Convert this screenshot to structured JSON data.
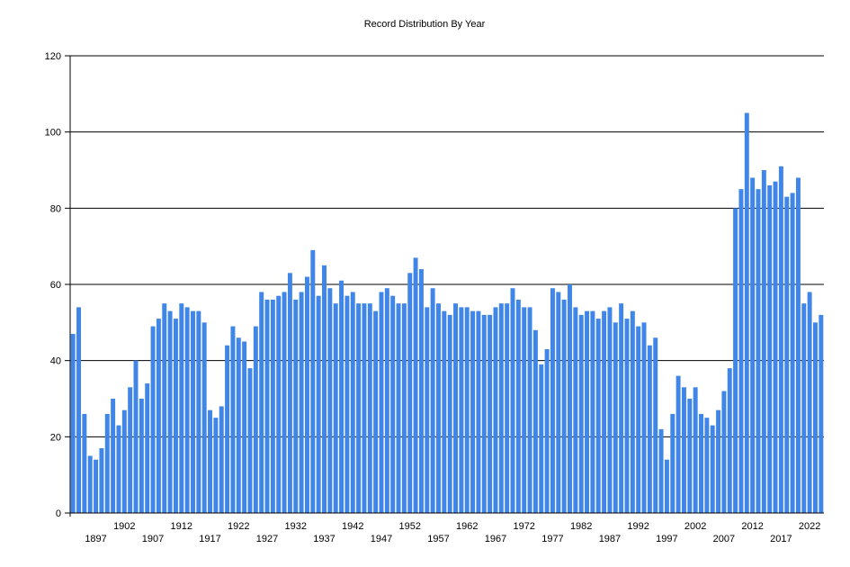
{
  "chart_data": {
    "type": "bar",
    "title": "Record Distribution By Year",
    "xlabel": "",
    "ylabel": "",
    "ylim": [
      0,
      120
    ],
    "yticks": [
      0,
      20,
      40,
      60,
      80,
      100,
      120
    ],
    "grid": true,
    "legend": "none",
    "bar_color": "#3f86e8",
    "x_start": 1893,
    "x_label_years": [
      1897,
      1902,
      1907,
      1912,
      1917,
      1922,
      1927,
      1932,
      1937,
      1942,
      1947,
      1952,
      1957,
      1962,
      1967,
      1972,
      1977,
      1982,
      1987,
      1992,
      1997,
      2002,
      2007,
      2012,
      2017,
      2022
    ],
    "values": [
      47,
      54,
      26,
      15,
      14,
      17,
      26,
      30,
      23,
      27,
      33,
      40,
      30,
      34,
      49,
      51,
      55,
      53,
      51,
      55,
      54,
      53,
      53,
      50,
      27,
      25,
      28,
      44,
      49,
      46,
      45,
      38,
      49,
      58,
      56,
      56,
      57,
      58,
      63,
      56,
      58,
      62,
      69,
      57,
      65,
      59,
      55,
      61,
      57,
      58,
      55,
      55,
      55,
      53,
      58,
      59,
      57,
      55,
      55,
      63,
      67,
      64,
      54,
      59,
      55,
      53,
      52,
      55,
      54,
      54,
      53,
      53,
      52,
      52,
      54,
      55,
      55,
      59,
      56,
      54,
      54,
      48,
      39,
      43,
      59,
      58,
      56,
      60,
      54,
      52,
      53,
      53,
      51,
      53,
      54,
      50,
      55,
      51,
      53,
      49,
      50,
      44,
      46,
      22,
      14,
      26,
      36,
      33,
      30,
      33,
      26,
      25,
      23,
      27,
      32,
      38,
      80,
      85,
      105,
      88,
      85,
      90,
      86,
      87,
      91,
      83,
      84,
      88,
      55,
      58,
      50,
      52
    ]
  }
}
